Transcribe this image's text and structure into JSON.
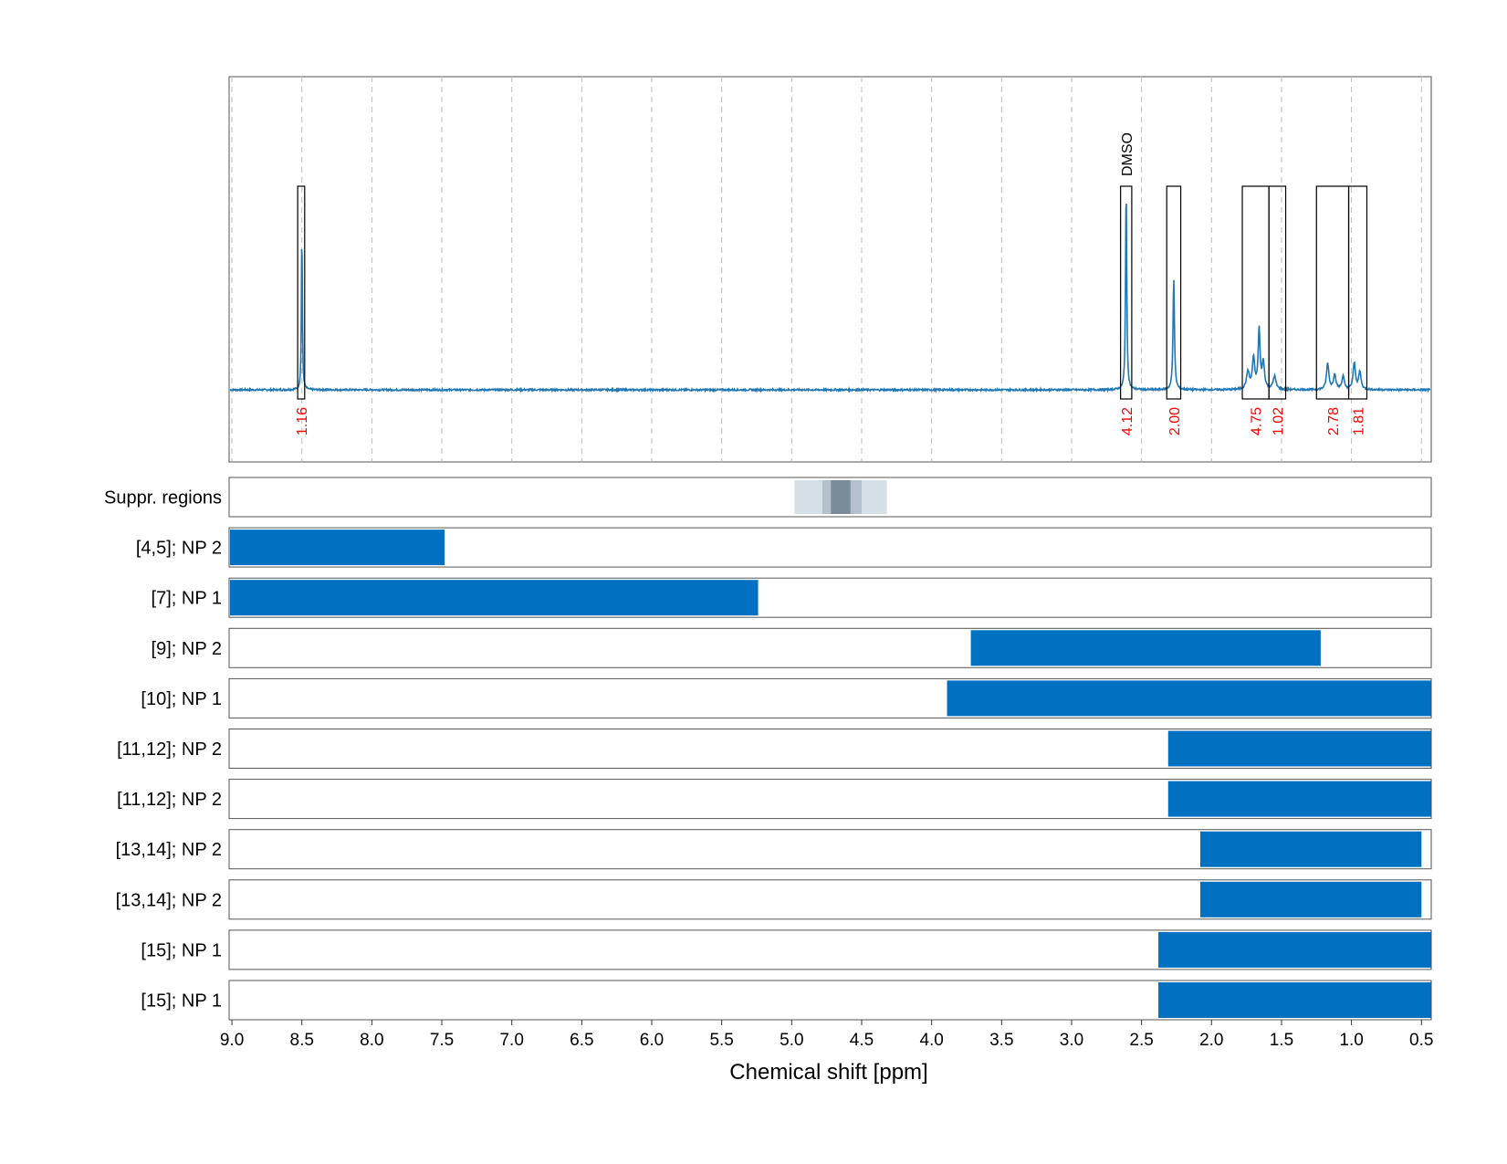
{
  "chart_data": {
    "type": "nmr-spectrum",
    "xlabel": "Chemical shift [ppm]",
    "xlim": [
      9.02,
      0.43
    ],
    "x_ticks": [
      "9.0",
      "8.5",
      "8.0",
      "7.5",
      "7.0",
      "6.5",
      "6.0",
      "5.5",
      "5.0",
      "4.5",
      "4.0",
      "3.5",
      "3.0",
      "2.5",
      "2.0",
      "1.5",
      "1.0",
      "0.5"
    ],
    "x_tick_values": [
      9.0,
      8.5,
      8.0,
      7.5,
      7.0,
      6.5,
      6.0,
      5.5,
      5.0,
      4.5,
      4.0,
      3.5,
      3.0,
      2.5,
      2.0,
      1.5,
      1.0,
      0.5
    ],
    "grid": true,
    "colors": {
      "spectrum": "#1f77b4",
      "range_bar": "#0070c0",
      "integral": "#ff0000",
      "suppression_light": "#d6dee6",
      "suppression_mid": "#b4c1cc",
      "suppression_dark": "#7a8b99"
    },
    "spectrum_peaks": [
      {
        "ppm": 8.5,
        "height": 0.73,
        "width": 0.004
      },
      {
        "ppm": 2.61,
        "height": 0.93,
        "width": 0.005
      },
      {
        "ppm": 2.27,
        "height": 0.51,
        "width": 0.006
      },
      {
        "ppm": 1.74,
        "height": 0.08,
        "width": 0.012
      },
      {
        "ppm": 1.7,
        "height": 0.14,
        "width": 0.01
      },
      {
        "ppm": 1.66,
        "height": 0.27,
        "width": 0.008
      },
      {
        "ppm": 1.63,
        "height": 0.12,
        "width": 0.01
      },
      {
        "ppm": 1.55,
        "height": 0.06,
        "width": 0.012
      },
      {
        "ppm": 1.17,
        "height": 0.12,
        "width": 0.01
      },
      {
        "ppm": 1.12,
        "height": 0.07,
        "width": 0.01
      },
      {
        "ppm": 1.06,
        "height": 0.06,
        "width": 0.01
      },
      {
        "ppm": 0.98,
        "height": 0.12,
        "width": 0.01
      },
      {
        "ppm": 0.94,
        "height": 0.08,
        "width": 0.01
      }
    ],
    "integration_regions": [
      {
        "from": 8.53,
        "to": 8.48,
        "label": "1.16"
      },
      {
        "from": 2.65,
        "to": 2.57,
        "label": "4.12",
        "annotation": "DMSO"
      },
      {
        "from": 2.32,
        "to": 2.22,
        "label": "2.00"
      },
      {
        "from": 1.78,
        "to": 1.59,
        "label": "4.75"
      },
      {
        "from": 1.59,
        "to": 1.47,
        "label": "1.02"
      },
      {
        "from": 1.25,
        "to": 1.02,
        "label": "2.78"
      },
      {
        "from": 1.02,
        "to": 0.89,
        "label": "1.81"
      }
    ],
    "suppression_regions": [
      {
        "from": 4.98,
        "to": 4.32,
        "level": "light"
      },
      {
        "from": 4.78,
        "to": 4.5,
        "level": "mid"
      },
      {
        "from": 4.72,
        "to": 4.58,
        "level": "dark"
      }
    ],
    "lanes": [
      {
        "label": "Suppr. regions",
        "type": "suppression"
      },
      {
        "label": "[4,5]; NP 2",
        "from": 9.02,
        "to": 7.48
      },
      {
        "label": "[7]; NP 1",
        "from": 9.02,
        "to": 5.24
      },
      {
        "label": "[9]; NP 2",
        "from": 3.72,
        "to": 1.22
      },
      {
        "label": "[10]; NP 1",
        "from": 3.89,
        "to": 0.43
      },
      {
        "label": "[11,12]; NP 2",
        "from": 2.31,
        "to": 0.43
      },
      {
        "label": "[11,12]; NP 2",
        "from": 2.31,
        "to": 0.43
      },
      {
        "label": "[13,14]; NP 2",
        "from": 2.08,
        "to": 0.5
      },
      {
        "label": "[13,14]; NP 2",
        "from": 2.08,
        "to": 0.5
      },
      {
        "label": "[15]; NP 1",
        "from": 2.38,
        "to": 0.43
      },
      {
        "label": "[15]; NP 1",
        "from": 2.38,
        "to": 0.43
      }
    ]
  }
}
